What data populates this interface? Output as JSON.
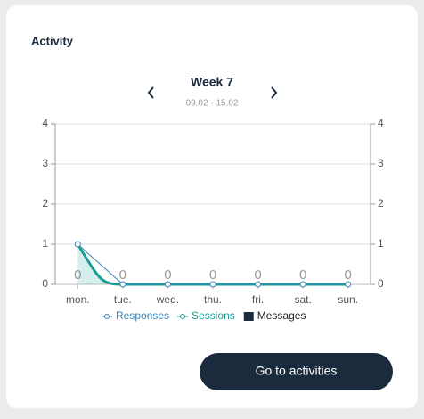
{
  "header": {
    "title": "Activity"
  },
  "week": {
    "label": "Week 7",
    "range": "09.02 - 15.02"
  },
  "chart_data": {
    "type": "line",
    "categories": [
      "mon.",
      "tue.",
      "wed.",
      "thu.",
      "fri.",
      "sat.",
      "sun."
    ],
    "series": [
      {
        "name": "Responses",
        "type": "line",
        "color": "#3a86b4",
        "values": [
          1,
          0,
          0,
          0,
          0,
          0,
          0
        ]
      },
      {
        "name": "Sessions",
        "type": "area",
        "color": "#1a9e96",
        "values": [
          1,
          0,
          0,
          0,
          0,
          0,
          0
        ]
      },
      {
        "name": "Messages",
        "type": "bar",
        "color": "#1b2b3e",
        "values": [
          0,
          0,
          0,
          0,
          0,
          0,
          0
        ]
      }
    ],
    "ylim": [
      0,
      4
    ],
    "yticks": [
      0,
      1,
      2,
      3,
      4
    ],
    "y2lim": [
      0,
      4
    ],
    "y2ticks": [
      0,
      1,
      2,
      3,
      4
    ],
    "grid": true,
    "legend": "bottom"
  },
  "button": {
    "label": "Go to activities"
  }
}
